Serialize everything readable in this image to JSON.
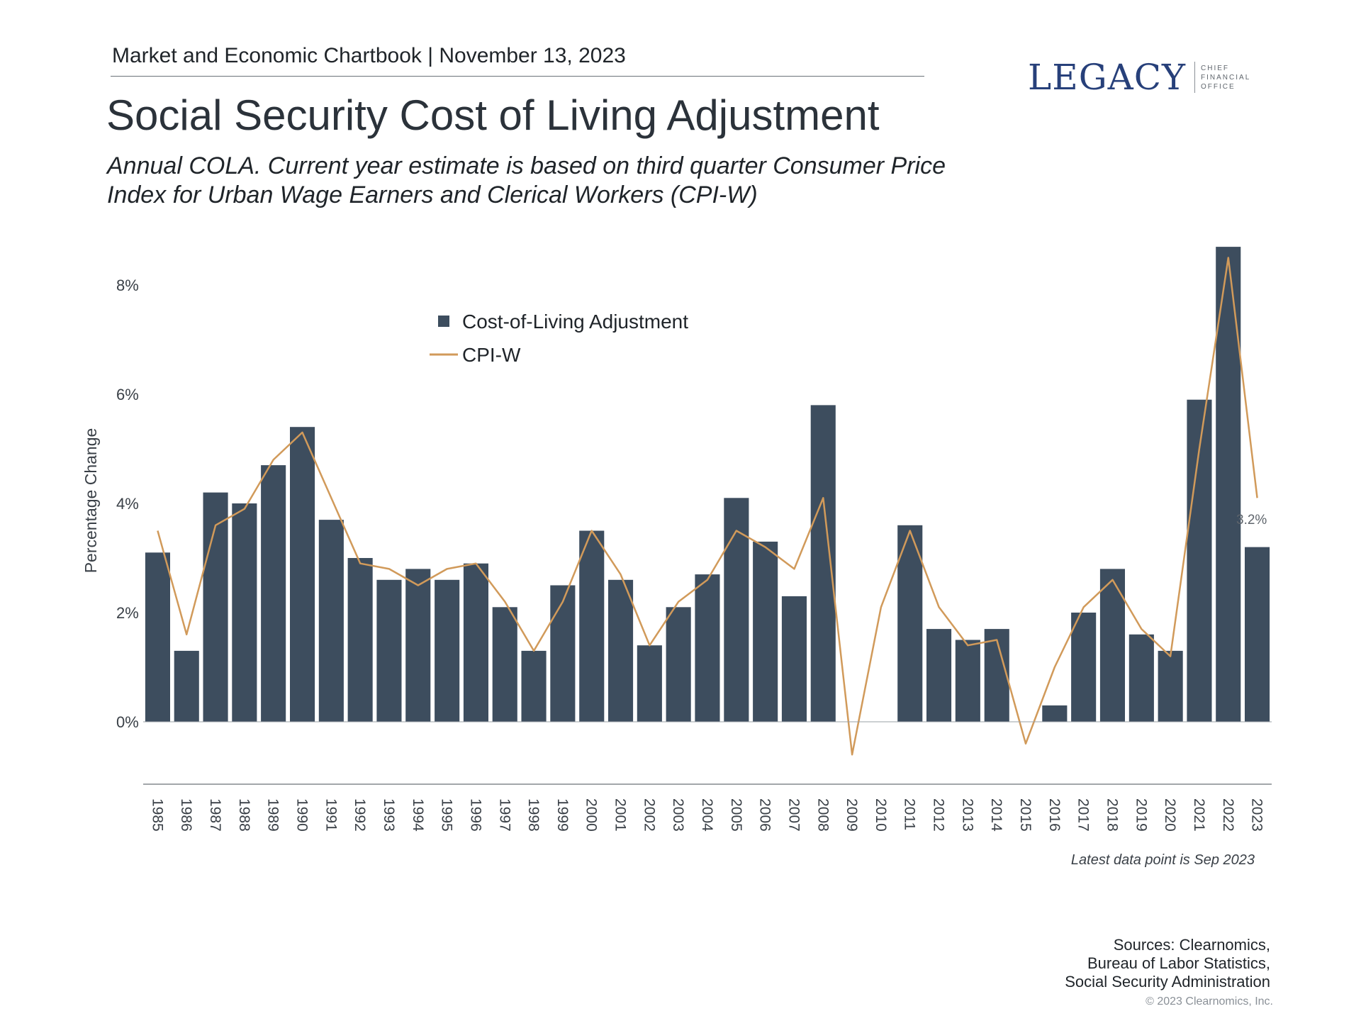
{
  "header": {
    "kicker": "Market and Economic Chartbook | November 13, 2023",
    "title": "Social Security Cost of Living Adjustment",
    "subtitle": "Annual COLA. Current year estimate is based on third quarter Consumer Price Index for Urban Wage Earners and Clerical Workers (CPI-W)"
  },
  "logo": {
    "word": "LEGACY",
    "sub": [
      "CHIEF",
      "FINANCIAL",
      "OFFICE"
    ]
  },
  "footer": {
    "sources": [
      "Sources: Clearnomics,",
      "Bureau of Labor Statistics,",
      "Social Security Administration"
    ],
    "copyright": "© 2023 Clearnomics, Inc."
  },
  "colors": {
    "bar": "#3d4d5e",
    "line": "#d19a5a",
    "axis_text": "#3a4047"
  },
  "chart_data": {
    "type": "bar",
    "ylabel": "Percentage Change",
    "xlabel": "",
    "ylim": [
      -1.1,
      8.8
    ],
    "yticks": [
      0,
      2,
      4,
      6,
      8
    ],
    "ytick_labels": [
      "0%",
      "2%",
      "4%",
      "6%",
      "8%"
    ],
    "categories": [
      "1985",
      "1986",
      "1987",
      "1988",
      "1989",
      "1990",
      "1991",
      "1992",
      "1993",
      "1994",
      "1995",
      "1996",
      "1997",
      "1998",
      "1999",
      "2000",
      "2001",
      "2002",
      "2003",
      "2004",
      "2005",
      "2006",
      "2007",
      "2008",
      "2009",
      "2010",
      "2011",
      "2012",
      "2013",
      "2014",
      "2015",
      "2016",
      "2017",
      "2018",
      "2019",
      "2020",
      "2021",
      "2022",
      "2023"
    ],
    "series": [
      {
        "name": "Cost-of-Living Adjustment",
        "type": "bar",
        "values": [
          3.1,
          1.3,
          4.2,
          4.0,
          4.7,
          5.4,
          3.7,
          3.0,
          2.6,
          2.8,
          2.6,
          2.9,
          2.1,
          1.3,
          2.5,
          3.5,
          2.6,
          1.4,
          2.1,
          2.7,
          4.1,
          3.3,
          2.3,
          5.8,
          0.0,
          0.0,
          3.6,
          1.7,
          1.5,
          1.7,
          0.0,
          0.3,
          2.0,
          2.8,
          1.6,
          1.3,
          5.9,
          8.7,
          3.2
        ]
      },
      {
        "name": "CPI-W",
        "type": "line",
        "values": [
          3.5,
          1.6,
          3.6,
          3.9,
          4.8,
          5.3,
          4.1,
          2.9,
          2.8,
          2.5,
          2.8,
          2.9,
          2.2,
          1.3,
          2.2,
          3.5,
          2.7,
          1.4,
          2.2,
          2.6,
          3.5,
          3.2,
          2.8,
          4.1,
          -0.6,
          2.1,
          3.5,
          2.1,
          1.4,
          1.5,
          -0.4,
          1.0,
          2.1,
          2.6,
          1.7,
          1.2,
          5.0,
          8.5,
          4.1
        ]
      }
    ],
    "annotation": "3.2%",
    "legend_position": "top-center",
    "grid": false,
    "footnote": "Latest data point is Sep 2023"
  }
}
